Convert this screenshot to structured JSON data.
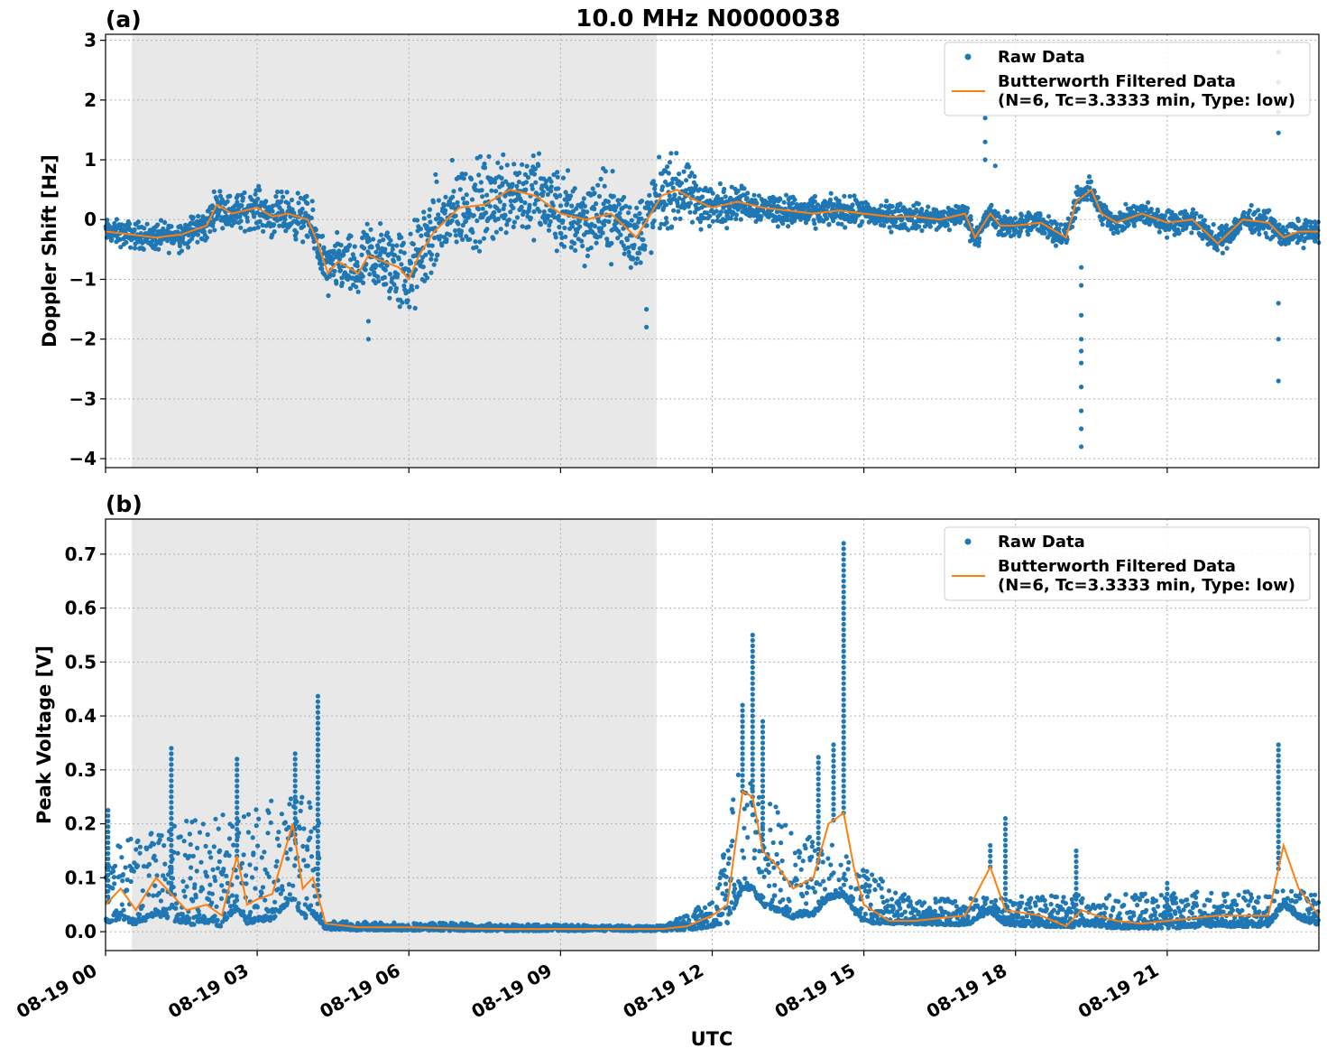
{
  "figure": {
    "title": "10.0 MHz N0000038",
    "xlabel": "UTC",
    "shade_color": "#e8e8e8",
    "raw_color": "#1f77b4",
    "filtered_color": "#ff7f0e"
  },
  "chart_data": [
    {
      "type": "scatter",
      "panel_label": "(a)",
      "ylabel": "Doppler Shift [Hz]",
      "xlim_hours": [
        0,
        24
      ],
      "ylim": [
        -4.15,
        3.1
      ],
      "y_ticks": [
        3,
        2,
        1,
        0,
        -1,
        -2,
        -3,
        -4
      ],
      "y_tick_labels": [
        "3",
        "2",
        "1",
        "0",
        "−1",
        "−2",
        "−3",
        "−4"
      ],
      "x_ticks_hours": [
        0,
        3,
        6,
        9,
        12,
        15,
        18,
        21
      ],
      "shaded_interval_hours": [
        0.52,
        10.9
      ],
      "grid": true,
      "legend_position": "top-right",
      "legend": {
        "raw": "Raw Data",
        "filtered_line1": "Butterworth Filtered Data",
        "filtered_line2": "(N=6, Tc=3.3333 min, Type: low)"
      },
      "band_halfwidth": [
        [
          0,
          0.15
        ],
        [
          2,
          0.2
        ],
        [
          4.3,
          0.3
        ],
        [
          6,
          0.55
        ],
        [
          8,
          0.55
        ],
        [
          10,
          0.5
        ],
        [
          11,
          0.45
        ],
        [
          12.5,
          0.2
        ],
        [
          17,
          0.15
        ],
        [
          24,
          0.15
        ]
      ],
      "series": [
        {
          "name": "Butterworth Filtered Data",
          "x_hours": [
            0,
            0.5,
            1,
            1.5,
            2,
            2.2,
            2.5,
            3,
            3.3,
            3.6,
            4,
            4.2,
            4.4,
            4.6,
            4.8,
            5,
            5.2,
            5.5,
            5.8,
            6,
            6.2,
            6.5,
            7,
            7.5,
            8,
            8.5,
            9,
            9.5,
            10,
            10.5,
            11,
            11.3,
            11.6,
            12,
            12.5,
            13,
            13.5,
            14,
            14.5,
            15,
            15.5,
            16,
            16.5,
            17,
            17.2,
            17.5,
            17.7,
            18,
            18.5,
            19,
            19.2,
            19.5,
            19.7,
            20,
            20.5,
            21,
            21.5,
            22,
            22.5,
            23,
            23.3,
            23.6,
            24
          ],
          "y": [
            -0.2,
            -0.25,
            -0.3,
            -0.25,
            -0.1,
            0.25,
            0.1,
            0.2,
            0.05,
            0.1,
            0.0,
            -0.4,
            -0.9,
            -0.7,
            -0.8,
            -0.9,
            -0.6,
            -0.7,
            -0.8,
            -1.0,
            -0.6,
            -0.2,
            0.2,
            0.25,
            0.5,
            0.4,
            0.1,
            0.0,
            0.1,
            -0.3,
            0.4,
            0.5,
            0.35,
            0.2,
            0.3,
            0.2,
            0.15,
            0.1,
            0.15,
            0.1,
            0.05,
            0.05,
            0.0,
            0.1,
            -0.3,
            0.1,
            -0.1,
            -0.1,
            -0.05,
            -0.3,
            0.3,
            0.5,
            0.1,
            -0.05,
            0.1,
            -0.05,
            0.0,
            -0.4,
            0.0,
            -0.05,
            -0.3,
            -0.2,
            -0.2
          ]
        },
        {
          "name": "Raw Data",
          "outliers_x_hours": [
            17.4,
            17.4,
            17.4,
            17.6,
            19.3,
            19.3,
            19.3,
            19.3,
            19.3,
            19.3,
            19.3,
            19.3,
            19.3,
            19.3,
            23.2,
            23.2,
            23.2,
            23.2,
            23.2,
            23.2,
            23.2,
            10.7,
            10.7,
            5.2,
            5.2
          ],
          "outliers_y": [
            1.7,
            1.0,
            1.3,
            0.9,
            -0.8,
            -1.1,
            -1.6,
            -2.0,
            -2.4,
            -2.8,
            -3.2,
            -3.5,
            -3.8,
            -2.2,
            2.8,
            2.3,
            1.8,
            -1.4,
            -2.0,
            -2.7,
            1.45,
            -1.8,
            -1.5,
            -2.0,
            -1.7
          ]
        }
      ]
    },
    {
      "type": "scatter",
      "panel_label": "(b)",
      "ylabel": "Peak Voltage [V]",
      "xlim_hours": [
        0,
        24
      ],
      "ylim": [
        -0.035,
        0.765
      ],
      "y_ticks": [
        0.0,
        0.1,
        0.2,
        0.3,
        0.4,
        0.5,
        0.6,
        0.7
      ],
      "y_tick_labels": [
        "0.0",
        "0.1",
        "0.2",
        "0.3",
        "0.4",
        "0.5",
        "0.6",
        "0.7"
      ],
      "x_ticks_hours": [
        0,
        3,
        6,
        9,
        12,
        15,
        18,
        21
      ],
      "x_tick_labels": [
        "08-19 00",
        "08-19 03",
        "08-19 06",
        "08-19 09",
        "08-19 12",
        "08-19 15",
        "08-19 18",
        "08-19 21"
      ],
      "shaded_interval_hours": [
        0.52,
        10.9
      ],
      "grid": true,
      "legend_position": "top-right",
      "legend": {
        "raw": "Raw Data",
        "filtered_line1": "Butterworth Filtered Data",
        "filtered_line2": "(N=6, Tc=3.3333 min, Type: low)"
      },
      "series": [
        {
          "name": "Butterworth Filtered Data",
          "x_hours": [
            0,
            0.3,
            0.6,
            1.0,
            1.3,
            1.6,
            2.0,
            2.3,
            2.6,
            2.8,
            3.0,
            3.3,
            3.7,
            3.9,
            4.1,
            4.25,
            4.35,
            5,
            6,
            7,
            8,
            9,
            10,
            11,
            11.5,
            12,
            12.3,
            12.6,
            12.8,
            13.0,
            13.3,
            13.6,
            14.0,
            14.3,
            14.6,
            14.8,
            15.0,
            15.5,
            16,
            17,
            17.5,
            17.8,
            18.5,
            19.0,
            19.3,
            19.6,
            20.0,
            20.5,
            21,
            22,
            23,
            23.3,
            23.6,
            24
          ],
          "y": [
            0.05,
            0.08,
            0.04,
            0.1,
            0.07,
            0.04,
            0.05,
            0.03,
            0.14,
            0.05,
            0.06,
            0.07,
            0.2,
            0.08,
            0.1,
            0.05,
            0.015,
            0.008,
            0.008,
            0.006,
            0.005,
            0.005,
            0.005,
            0.005,
            0.01,
            0.03,
            0.05,
            0.26,
            0.25,
            0.15,
            0.12,
            0.08,
            0.1,
            0.2,
            0.22,
            0.12,
            0.05,
            0.02,
            0.02,
            0.03,
            0.12,
            0.04,
            0.03,
            0.01,
            0.04,
            0.03,
            0.02,
            0.015,
            0.02,
            0.03,
            0.03,
            0.16,
            0.08,
            0.03
          ]
        },
        {
          "name": "Raw Data",
          "peaks_x_hours": [
            0.05,
            1.3,
            2.6,
            3.75,
            4.2,
            12.6,
            12.8,
            13.0,
            14.1,
            14.4,
            14.6,
            17.5,
            17.8,
            19.2,
            21.0,
            23.2
          ],
          "peaks_y": [
            0.23,
            0.35,
            0.33,
            0.34,
            0.44,
            0.43,
            0.56,
            0.4,
            0.33,
            0.35,
            0.73,
            0.17,
            0.22,
            0.15,
            0.09,
            0.35
          ],
          "envelope_upper": [
            [
              0,
              0.15
            ],
            [
              1,
              0.2
            ],
            [
              2.5,
              0.22
            ],
            [
              3.5,
              0.25
            ],
            [
              4.2,
              0.25
            ],
            [
              4.3,
              0.02
            ],
            [
              11,
              0.01
            ],
            [
              12,
              0.06
            ],
            [
              12.5,
              0.3
            ],
            [
              13.5,
              0.22
            ],
            [
              15,
              0.12
            ],
            [
              16,
              0.06
            ],
            [
              24,
              0.08
            ]
          ],
          "envelope_lower": [
            [
              0,
              0.01
            ],
            [
              4.2,
              0.01
            ],
            [
              4.3,
              0.0
            ],
            [
              11.5,
              0.0
            ],
            [
              12.5,
              0.02
            ],
            [
              24,
              0.0
            ]
          ]
        }
      ]
    }
  ]
}
